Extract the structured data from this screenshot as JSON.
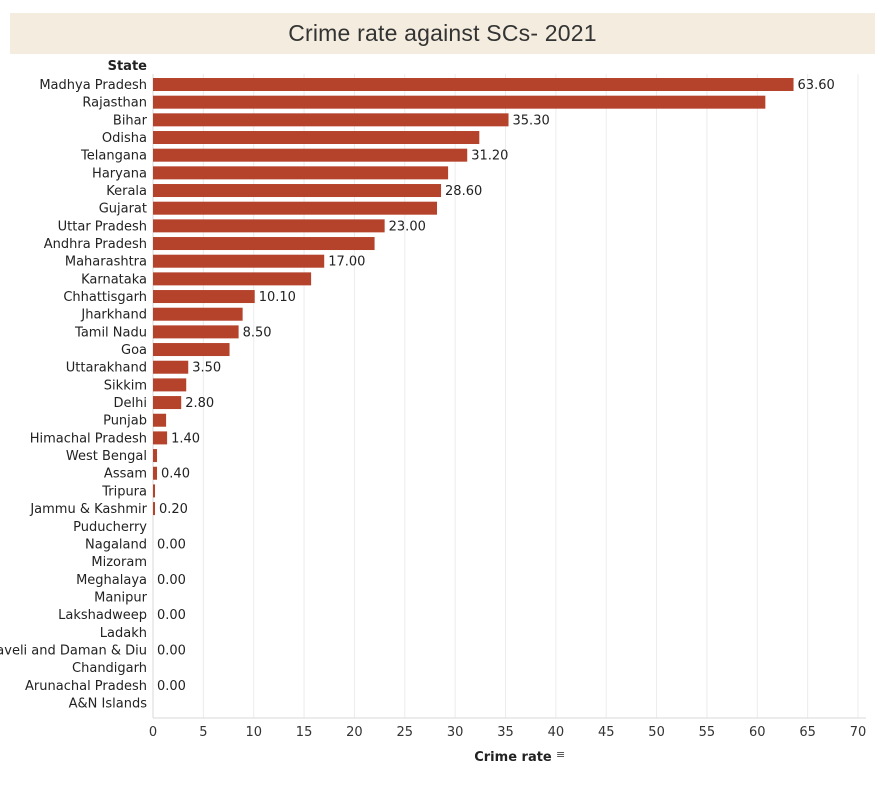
{
  "chart_data": {
    "type": "bar",
    "orientation": "horizontal",
    "title": "Crime rate against SCs- 2021",
    "row_header": "State",
    "xlabel": "Crime rate",
    "xlim": [
      0,
      70
    ],
    "xticks": [
      0,
      5,
      10,
      15,
      20,
      25,
      30,
      35,
      40,
      45,
      50,
      55,
      60,
      65,
      70
    ],
    "bar_color": "#b5432c",
    "grid": "vertical",
    "categories": [
      "Madhya Pradesh",
      "Rajasthan",
      "Bihar",
      "Odisha",
      "Telangana",
      "Haryana",
      "Kerala",
      "Gujarat",
      "Uttar Pradesh",
      "Andhra Pradesh",
      "Maharashtra",
      "Karnataka",
      "Chhattisgarh",
      "Jharkhand",
      "Tamil Nadu",
      "Goa",
      "Uttarakhand",
      "Sikkim",
      "Delhi",
      "Punjab",
      "Himachal Pradesh",
      "West Bengal",
      "Assam",
      "Tripura",
      "Jammu & Kashmir",
      "Puducherry",
      "Nagaland",
      "Mizoram",
      "Meghalaya",
      "Manipur",
      "Lakshadweep",
      "Ladakh",
      "D&N Haveli and Daman & Diu",
      "Chandigarh",
      "Arunachal Pradesh",
      "A&N Islands"
    ],
    "values": [
      63.6,
      60.8,
      35.3,
      32.4,
      31.2,
      29.3,
      28.6,
      28.2,
      23.0,
      22.0,
      17.0,
      15.7,
      10.1,
      8.9,
      8.5,
      7.6,
      3.5,
      3.3,
      2.8,
      1.3,
      1.4,
      0.4,
      0.4,
      0.2,
      0.2,
      0.0,
      0.0,
      0.0,
      0.0,
      0.0,
      0.0,
      0.0,
      0.0,
      0.0,
      0.0,
      0.0
    ],
    "data_labels": [
      "63.60",
      "",
      "35.30",
      "",
      "31.20",
      "",
      "28.60",
      "",
      "23.00",
      "",
      "17.00",
      "",
      "10.10",
      "",
      "8.50",
      "",
      "3.50",
      "",
      "2.80",
      "",
      "1.40",
      "",
      "0.40",
      "",
      "0.20",
      "",
      "0.00",
      "",
      "0.00",
      "",
      "0.00",
      "",
      "0.00",
      "",
      "0.00",
      ""
    ]
  }
}
